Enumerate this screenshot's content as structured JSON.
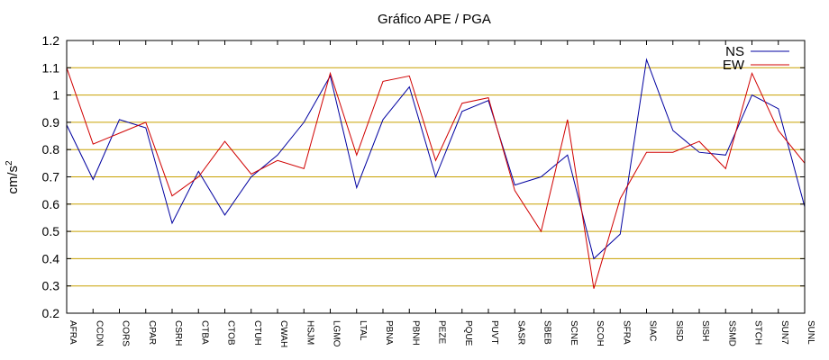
{
  "chart_data": {
    "type": "line",
    "title": "Gráfico  APE / PGA",
    "xlabel": "",
    "ylabel": "cm/s",
    "ylabel_superscript": "2",
    "ylim": [
      0.2,
      1.2
    ],
    "yticks": [
      0.2,
      0.3,
      0.4,
      0.5,
      0.6,
      0.7,
      0.8,
      0.9,
      1,
      1.1,
      1.2
    ],
    "ytick_labels": [
      "0.2",
      "0.3",
      "0.4",
      "0.5",
      "0.6",
      "0.7",
      "0.8",
      "0.9",
      "1",
      "1.1",
      "1.2"
    ],
    "grid": "horizontal",
    "grid_color": "#c8a000",
    "legend_position": "top-right",
    "categories": [
      "AFRA",
      "CCDN",
      "CORS",
      "CPAR",
      "CSRH",
      "CTBA",
      "CTOB",
      "CTUH",
      "CWAH",
      "HSJM",
      "LGMO",
      "LTAL",
      "PBNA",
      "PBNH",
      "PEZE",
      "PQUE",
      "PUVT",
      "SASR",
      "SBEB",
      "SCNE",
      "SCOH",
      "SFRA",
      "SIAC",
      "SISD",
      "SISH",
      "SSMD",
      "STCH",
      "SUN7",
      "SUNL"
    ],
    "series": [
      {
        "name": "NS",
        "color": "#0000a0",
        "values": [
          0.89,
          0.69,
          0.91,
          0.88,
          0.53,
          0.72,
          0.56,
          0.7,
          0.78,
          0.9,
          1.07,
          0.66,
          0.91,
          1.03,
          0.7,
          0.94,
          0.98,
          0.67,
          0.7,
          0.78,
          0.4,
          0.49,
          1.13,
          0.87,
          0.79,
          0.78,
          1.0,
          0.95,
          0.59
        ]
      },
      {
        "name": "EW",
        "color": "#d00000",
        "values": [
          1.1,
          0.82,
          0.86,
          0.9,
          0.63,
          0.7,
          0.83,
          0.71,
          0.76,
          0.73,
          1.08,
          0.78,
          1.05,
          1.07,
          0.76,
          0.97,
          0.99,
          0.65,
          0.5,
          0.91,
          0.29,
          0.62,
          0.79,
          0.79,
          0.83,
          0.73,
          1.08,
          0.87,
          0.75
        ]
      }
    ]
  }
}
